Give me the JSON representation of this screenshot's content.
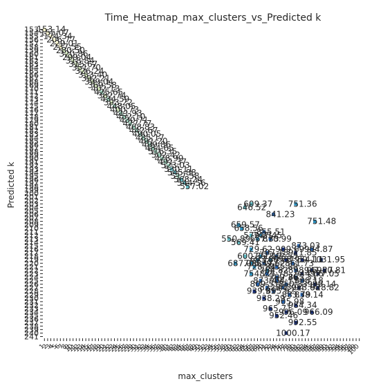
{
  "chart_data": {
    "type": "heatmap",
    "title": "Time_Heatmap_max_clusters_vs_Predicted k",
    "xlabel": "max_clusters",
    "ylabel": "Predicted k",
    "y_range": [
      153,
      241
    ],
    "x_range": [
      1,
      100
    ],
    "colormap": [
      "#fffbd0",
      "#d7ecc0",
      "#9fd3bd",
      "#5fb8c1",
      "#2c90be",
      "#225ea8",
      "#142b73",
      "#0b1d4e"
    ],
    "diagonal_labels": [
      "153.14",
      "155.07",
      "174.34",
      "206.77",
      "229.01",
      "237.55",
      "280.50",
      "320.86",
      "299.04",
      "318.84",
      "315.67",
      "351.70",
      "326.24",
      "353.40",
      "392.21",
      "399.04",
      "369.58",
      "402.13",
      "425.65",
      "382.74",
      "434.59",
      "393.22",
      "448.05",
      "400.73",
      "411.93",
      "452.10",
      "430.71",
      "477.77",
      "468.83",
      "442.67",
      "490.05",
      "485.17",
      "491.20",
      "499.86",
      "484.65",
      "516.35",
      "502.42",
      "478.99",
      "491.37",
      "523.03",
      "530.11",
      "545.88",
      "517.58",
      "568.24",
      "544.56",
      "557.02"
    ],
    "scatter_cells": [
      {
        "x": 66,
        "y": 203,
        "label": "609.37"
      },
      {
        "x": 64,
        "y": 204,
        "label": "646.52"
      },
      {
        "x": 80,
        "y": 203,
        "label": "751.36"
      },
      {
        "x": 73,
        "y": 206,
        "label": "841.23"
      },
      {
        "x": 86,
        "y": 208,
        "label": "751.48"
      },
      {
        "x": 62,
        "y": 209,
        "label": "659.57"
      },
      {
        "x": 63,
        "y": 210,
        "label": "658.56"
      },
      {
        "x": 70,
        "y": 211,
        "label": "855.51"
      },
      {
        "x": 66,
        "y": 212,
        "label": "579.21"
      },
      {
        "x": 69,
        "y": 212,
        "label": "747.45"
      },
      {
        "x": 59,
        "y": 213,
        "label": "550.89"
      },
      {
        "x": 68,
        "y": 213,
        "label": "657.33"
      },
      {
        "x": 72,
        "y": 213,
        "label": "870.99"
      },
      {
        "x": 62,
        "y": 214,
        "label": "569.41"
      },
      {
        "x": 81,
        "y": 215,
        "label": "873.03"
      },
      {
        "x": 66,
        "y": 216,
        "label": "729.62"
      },
      {
        "x": 76,
        "y": 216,
        "label": "909.69"
      },
      {
        "x": 85,
        "y": 216,
        "label": "904.87"
      },
      {
        "x": 71,
        "y": 217,
        "label": "797.18"
      },
      {
        "x": 80,
        "y": 217,
        "label": "911.85"
      },
      {
        "x": 64,
        "y": 218,
        "label": "600.35"
      },
      {
        "x": 69,
        "y": 218,
        "label": "771.12"
      },
      {
        "x": 74,
        "y": 218,
        "label": "842.55"
      },
      {
        "x": 68,
        "y": 219,
        "label": "693.39"
      },
      {
        "x": 72,
        "y": 219,
        "label": "766.78"
      },
      {
        "x": 77,
        "y": 219,
        "label": "957.59"
      },
      {
        "x": 82,
        "y": 219,
        "label": "954.11"
      },
      {
        "x": 88,
        "y": 219,
        "label": "1031.95"
      },
      {
        "x": 61,
        "y": 220,
        "label": "687.08"
      },
      {
        "x": 66,
        "y": 220,
        "label": "705.47"
      },
      {
        "x": 70,
        "y": 220,
        "label": "839.62"
      },
      {
        "x": 79,
        "y": 220,
        "label": "861.73"
      },
      {
        "x": 67,
        "y": 221,
        "label": "728.84"
      },
      {
        "x": 74,
        "y": 221,
        "label": "855.88"
      },
      {
        "x": 71,
        "y": 222,
        "label": "764.82"
      },
      {
        "x": 80,
        "y": 222,
        "label": "898.96"
      },
      {
        "x": 85,
        "y": 222,
        "label": "941.27"
      },
      {
        "x": 89,
        "y": 222,
        "label": "950.81"
      },
      {
        "x": 66,
        "y": 223,
        "label": "754.72"
      },
      {
        "x": 71,
        "y": 223,
        "label": "825.78"
      },
      {
        "x": 82,
        "y": 223,
        "label": "944.06"
      },
      {
        "x": 87,
        "y": 223,
        "label": "977.05"
      },
      {
        "x": 74,
        "y": 224,
        "label": "799.36"
      },
      {
        "x": 80,
        "y": 224,
        "label": "865.31"
      },
      {
        "x": 69,
        "y": 225,
        "label": "873.49"
      },
      {
        "x": 74,
        "y": 225,
        "label": "904.13"
      },
      {
        "x": 82,
        "y": 225,
        "label": "898.18"
      },
      {
        "x": 68,
        "y": 226,
        "label": "809.51"
      },
      {
        "x": 77,
        "y": 226,
        "label": "850.33"
      },
      {
        "x": 86,
        "y": 226,
        "label": "999.14"
      },
      {
        "x": 71,
        "y": 227,
        "label": "822.41"
      },
      {
        "x": 76,
        "y": 227,
        "label": "843.94"
      },
      {
        "x": 81,
        "y": 227,
        "label": "913.68"
      },
      {
        "x": 87,
        "y": 227,
        "label": "928.82"
      },
      {
        "x": 67,
        "y": 228,
        "label": "939.91"
      },
      {
        "x": 73,
        "y": 228,
        "label": "895.92"
      },
      {
        "x": 78,
        "y": 229,
        "label": "883.79"
      },
      {
        "x": 82,
        "y": 229,
        "label": "838.14"
      },
      {
        "x": 70,
        "y": 230,
        "label": "938.29"
      },
      {
        "x": 76,
        "y": 231,
        "label": "905.98"
      },
      {
        "x": 80,
        "y": 232,
        "label": "984.34"
      },
      {
        "x": 72,
        "y": 233,
        "label": "965.71"
      },
      {
        "x": 77,
        "y": 234,
        "label": "996.09"
      },
      {
        "x": 85,
        "y": 234,
        "label": "966.09"
      },
      {
        "x": 74,
        "y": 235,
        "label": "952.46"
      },
      {
        "x": 80,
        "y": 237,
        "label": "992.55"
      },
      {
        "x": 77,
        "y": 240,
        "label": "1000.17"
      }
    ]
  }
}
